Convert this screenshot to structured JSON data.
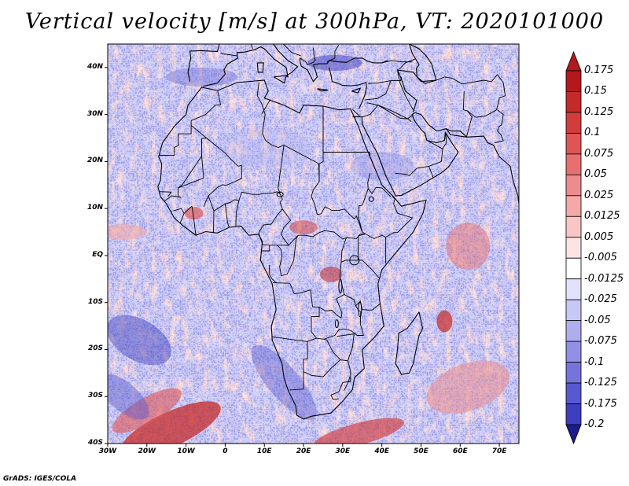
{
  "title": "Vertical velocity [m/s] at 300hPa, VT: 2020101000",
  "credit": "GrADS: IGES/COLA",
  "y_ticks": [
    {
      "value": 40,
      "label": "40N"
    },
    {
      "value": 30,
      "label": "30N"
    },
    {
      "value": 20,
      "label": "20N"
    },
    {
      "value": 10,
      "label": "10N"
    },
    {
      "value": 0,
      "label": "EQ"
    },
    {
      "value": -10,
      "label": "10S"
    },
    {
      "value": -20,
      "label": "20S"
    },
    {
      "value": -30,
      "label": "30S"
    },
    {
      "value": -40,
      "label": "40S"
    }
  ],
  "x_ticks": [
    {
      "value": -30,
      "label": "30W"
    },
    {
      "value": -20,
      "label": "20W"
    },
    {
      "value": -10,
      "label": "10W"
    },
    {
      "value": 0,
      "label": "0"
    },
    {
      "value": 10,
      "label": "10E"
    },
    {
      "value": 20,
      "label": "20E"
    },
    {
      "value": 30,
      "label": "30E"
    },
    {
      "value": 40,
      "label": "40E"
    },
    {
      "value": 50,
      "label": "50E"
    },
    {
      "value": 60,
      "label": "60E"
    },
    {
      "value": 70,
      "label": "70E"
    }
  ],
  "colorbar": [
    {
      "label": "0.175",
      "color": "#b3181c"
    },
    {
      "label": "0.15",
      "color": "#c42a2a"
    },
    {
      "label": "0.125",
      "color": "#d23c3c"
    },
    {
      "label": "0.1",
      "color": "#de5555"
    },
    {
      "label": "0.075",
      "color": "#e67070"
    },
    {
      "label": "0.05",
      "color": "#ed8c8c"
    },
    {
      "label": "0.025",
      "color": "#f4a8a8"
    },
    {
      "label": "0.0125",
      "color": "#f9c6c6"
    },
    {
      "label": "0.005",
      "color": "#fde4e4"
    },
    {
      "label": "-0.005",
      "color": "#ffffff"
    },
    {
      "label": "-0.0125",
      "color": "#e2e2fb"
    },
    {
      "label": "-0.025",
      "color": "#c8c8f5"
    },
    {
      "label": "-0.05",
      "color": "#aeaeee"
    },
    {
      "label": "-0.075",
      "color": "#9090e6"
    },
    {
      "label": "-0.1",
      "color": "#7474dc"
    },
    {
      "label": "-0.125",
      "color": "#5858cf"
    },
    {
      "label": "-0.175",
      "color": "#3e3ebf"
    },
    {
      "label": "-0.2",
      "color": "#2a2aa8"
    }
  ],
  "colorbar_ends": {
    "top": "#b3181c",
    "bottom": "#1c1c8e"
  }
}
